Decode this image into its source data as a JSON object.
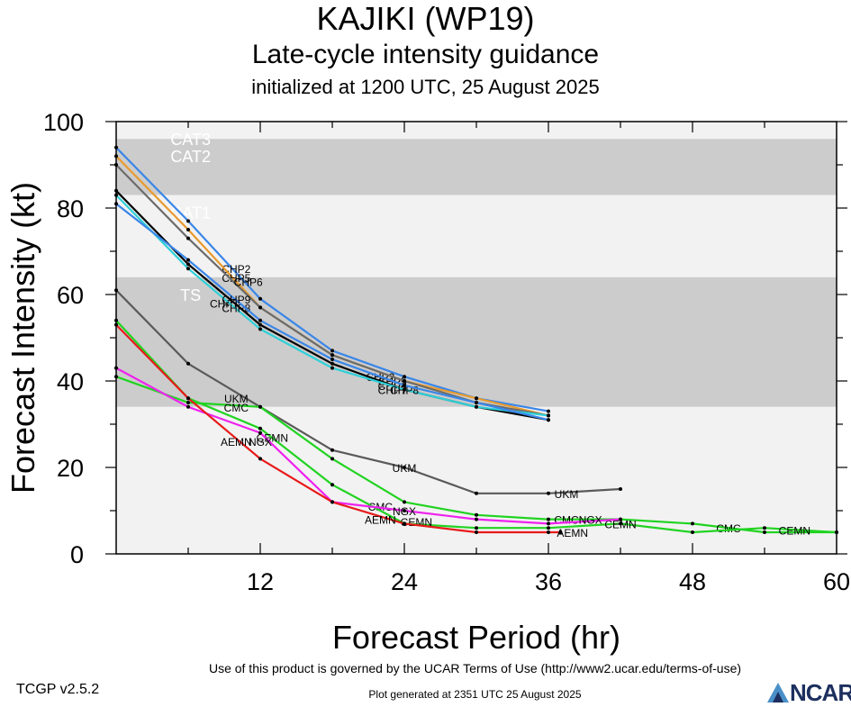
{
  "header": {
    "title": "KAJIKI (WP19)",
    "subtitle": "Late-cycle intensity guidance",
    "initialized": "initialized at 1200 UTC, 25 August 2025"
  },
  "footer": {
    "terms": "Use of this product is governed by the UCAR Terms of Use (http://www2.ucar.edu/terms-of-use)",
    "version": "TCGP v2.5.2",
    "generated": "Plot generated at 2351 UTC   25 August 2025",
    "logo": "NCAR"
  },
  "chart_data": {
    "type": "line",
    "xlabel": "Forecast Period (hr)",
    "ylabel": "Forecast Intensity (kt)",
    "xlim": [
      0,
      60
    ],
    "ylim": [
      0,
      100
    ],
    "xticks": [
      12,
      24,
      36,
      48,
      60
    ],
    "yticks": [
      0,
      20,
      40,
      60,
      80,
      100
    ],
    "grid": false,
    "bands": [
      {
        "label": "CAT3",
        "ymin": 96,
        "ymax": 100,
        "color": "#f2f2f2"
      },
      {
        "label": "CAT2",
        "ymin": 83,
        "ymax": 96,
        "color": "#cccccc"
      },
      {
        "label": "CAT1",
        "ymin": 64,
        "ymax": 83,
        "color": "#f2f2f2"
      },
      {
        "label": "TS",
        "ymin": 34,
        "ymax": 64,
        "color": "#cccccc"
      },
      {
        "label": "",
        "ymin": 0,
        "ymax": 34,
        "color": "#f2f2f2"
      }
    ],
    "series": [
      {
        "name": "CHP2",
        "color": "#3a86e8",
        "points": [
          [
            0,
            94
          ],
          [
            6,
            77
          ],
          [
            12,
            59
          ],
          [
            18,
            47
          ],
          [
            24,
            41
          ],
          [
            30,
            36
          ],
          [
            36,
            33
          ]
        ],
        "labels": [
          [
            10,
            66
          ],
          [
            22,
            41
          ]
        ]
      },
      {
        "name": "CHP5",
        "color": "#e89a2e",
        "points": [
          [
            0,
            92
          ],
          [
            6,
            75
          ],
          [
            12,
            57
          ],
          [
            18,
            46
          ],
          [
            24,
            40
          ],
          [
            30,
            36
          ],
          [
            36,
            32
          ]
        ],
        "labels": [
          [
            10,
            64
          ],
          [
            23,
            40
          ]
        ]
      },
      {
        "name": "CHP6",
        "color": "#6b6b6b",
        "points": [
          [
            0,
            90
          ],
          [
            6,
            73
          ],
          [
            12,
            57
          ],
          [
            18,
            46
          ],
          [
            24,
            40
          ],
          [
            30,
            35
          ],
          [
            36,
            32
          ]
        ],
        "labels": [
          [
            11,
            63
          ],
          [
            23,
            39
          ]
        ]
      },
      {
        "name": "CHP7",
        "color": "#000000",
        "points": [
          [
            0,
            84
          ],
          [
            6,
            67
          ],
          [
            12,
            53
          ],
          [
            18,
            44
          ],
          [
            24,
            38
          ],
          [
            30,
            34
          ],
          [
            36,
            31
          ]
        ],
        "labels": [
          [
            9,
            58
          ],
          [
            23,
            38
          ]
        ]
      },
      {
        "name": "CHP8",
        "color": "#2fd0d8",
        "points": [
          [
            0,
            83
          ],
          [
            6,
            66
          ],
          [
            12,
            52
          ],
          [
            18,
            43
          ],
          [
            24,
            38
          ],
          [
            30,
            34
          ],
          [
            36,
            32
          ]
        ],
        "labels": [
          [
            10,
            57
          ],
          [
            24,
            38
          ]
        ]
      },
      {
        "name": "CHP9",
        "color": "#3a86e8",
        "points": [
          [
            0,
            81
          ],
          [
            6,
            68
          ],
          [
            12,
            54
          ],
          [
            18,
            45
          ],
          [
            24,
            39
          ],
          [
            30,
            35
          ],
          [
            36,
            31
          ]
        ],
        "labels": [
          [
            10,
            59
          ]
        ]
      },
      {
        "name": "UKM",
        "color": "#5a5a5a",
        "points": [
          [
            0,
            61
          ],
          [
            6,
            44
          ],
          [
            12,
            34
          ],
          [
            18,
            24
          ],
          [
            24,
            20
          ],
          [
            30,
            14
          ],
          [
            36,
            14
          ],
          [
            42,
            15
          ]
        ],
        "labels": [
          [
            10,
            36
          ],
          [
            24,
            20
          ],
          [
            37.5,
            14
          ]
        ]
      },
      {
        "name": "CMC",
        "color": "#21d321",
        "points": [
          [
            0,
            41
          ],
          [
            6,
            35
          ],
          [
            12,
            34
          ],
          [
            18,
            22
          ],
          [
            24,
            12
          ],
          [
            30,
            9
          ],
          [
            36,
            8
          ],
          [
            42,
            8
          ],
          [
            48,
            7
          ],
          [
            54,
            5
          ],
          [
            60,
            5
          ]
        ],
        "labels": [
          [
            10,
            34
          ],
          [
            22,
            11
          ],
          [
            37.5,
            8
          ],
          [
            51,
            6
          ]
        ]
      },
      {
        "name": "CEMN",
        "color": "#21d321",
        "points": [
          [
            0,
            54
          ],
          [
            6,
            36
          ],
          [
            12,
            29
          ],
          [
            18,
            16
          ],
          [
            24,
            7
          ],
          [
            30,
            6
          ],
          [
            36,
            6
          ],
          [
            42,
            7
          ],
          [
            48,
            5
          ],
          [
            54,
            6
          ],
          [
            60,
            5
          ]
        ],
        "labels": [
          [
            13,
            27
          ],
          [
            25,
            7.5
          ],
          [
            42,
            7
          ],
          [
            56.5,
            5.5
          ]
        ]
      },
      {
        "name": "NGX",
        "color": "#ee22ee",
        "points": [
          [
            0,
            43
          ],
          [
            6,
            34
          ],
          [
            12,
            28
          ],
          [
            18,
            12
          ],
          [
            24,
            10
          ],
          [
            30,
            8
          ],
          [
            36,
            7
          ],
          [
            42,
            8
          ]
        ],
        "labels": [
          [
            12,
            26
          ],
          [
            24,
            10
          ],
          [
            39.5,
            8
          ]
        ]
      },
      {
        "name": "AEMN",
        "color": "#e81a1a",
        "points": [
          [
            0,
            53
          ],
          [
            6,
            36
          ],
          [
            12,
            22
          ],
          [
            18,
            12
          ],
          [
            24,
            7
          ],
          [
            30,
            5
          ],
          [
            36,
            5
          ],
          [
            37,
            5
          ]
        ],
        "labels": [
          [
            10,
            26
          ],
          [
            22,
            8
          ],
          [
            38,
            5
          ]
        ]
      }
    ]
  }
}
